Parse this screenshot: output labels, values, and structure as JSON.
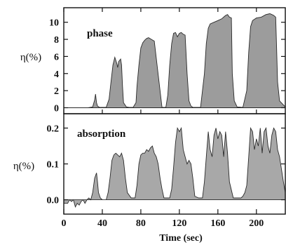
{
  "chart_data": {
    "type": "area",
    "xlabel": "Time (sec)",
    "xlim": [
      0,
      230
    ],
    "xticks": [
      0,
      40,
      80,
      120,
      160,
      200
    ],
    "panels": [
      {
        "label": "phase",
        "ylabel": "η(%)",
        "ylim": [
          -0.7,
          11.7
        ],
        "yticks": [
          0,
          2,
          4,
          6,
          8,
          10
        ],
        "series": [
          {
            "x": [
              0,
              25,
              30,
              32,
              33,
              34,
              35,
              37,
              44,
              47,
              49,
              51,
              53,
              55,
              56,
              57,
              59,
              60,
              61,
              62,
              65,
              68,
              72,
              75,
              76,
              78,
              80,
              82,
              84,
              86,
              88,
              91,
              94,
              102,
              106,
              108,
              110,
              112,
              114,
              116,
              118,
              120,
              122,
              124,
              126,
              128,
              130,
              132,
              134,
              136,
              142,
              146,
              148,
              150,
              152,
              156,
              160,
              164,
              166,
              168,
              170,
              172,
              174,
              175,
              177,
              180,
              186,
              190,
              192,
              194,
              196,
              200,
              205,
              210,
              214,
              216,
              218,
              220,
              221,
              222,
              224,
              230
            ],
            "y": [
              0,
              0,
              0.1,
              0.9,
              1.6,
              0.6,
              0.2,
              0.05,
              0.05,
              1.0,
              3.0,
              5.0,
              5.9,
              5.2,
              4.7,
              5.4,
              5.7,
              5.0,
              2.5,
              0.6,
              0.1,
              0.05,
              0.05,
              0.6,
              2.5,
              5.0,
              7.0,
              7.6,
              7.9,
              8.1,
              8.2,
              8.0,
              7.8,
              0.05,
              0.05,
              1.5,
              5.0,
              7.5,
              8.7,
              8.8,
              8.3,
              8.7,
              8.8,
              8.6,
              8.5,
              4.0,
              0.8,
              0.2,
              0.05,
              0.05,
              0.05,
              4.0,
              7.5,
              9.3,
              9.8,
              10.0,
              10.2,
              10.4,
              10.6,
              10.8,
              10.9,
              10.6,
              10.5,
              4.0,
              0.8,
              0.1,
              0.05,
              2.0,
              6.5,
              9.5,
              10.2,
              10.5,
              10.6,
              10.9,
              11.0,
              10.9,
              10.8,
              10.6,
              7.0,
              3.0,
              0.8,
              0.1
            ]
          }
        ]
      },
      {
        "label": "absorption",
        "ylabel": "η(%)",
        "ylim": [
          -0.04,
          0.24
        ],
        "yticks": [
          0.0,
          0.1,
          0.2
        ],
        "ytick_labels": [
          "0.0",
          "0.1",
          "0.2"
        ],
        "series": [
          {
            "x": [
              0,
              4,
              6,
              8,
              10,
              12,
              14,
              16,
              18,
              20,
              22,
              24,
              26,
              28,
              30,
              32,
              34,
              35,
              36,
              38,
              40,
              44,
              46,
              48,
              50,
              52,
              54,
              56,
              58,
              60,
              62,
              64,
              66,
              70,
              74,
              76,
              78,
              80,
              82,
              84,
              86,
              88,
              90,
              92,
              94,
              96,
              98,
              100,
              102,
              104,
              110,
              112,
              114,
              116,
              118,
              120,
              122,
              124,
              126,
              128,
              130,
              132,
              134,
              136,
              140,
              144,
              146,
              148,
              150,
              152,
              154,
              156,
              158,
              160,
              162,
              164,
              166,
              168,
              170,
              172,
              176,
              184,
              186,
              188,
              190,
              192,
              194,
              196,
              198,
              200,
              202,
              204,
              206,
              208,
              210,
              212,
              214,
              216,
              218,
              220,
              222,
              224,
              228,
              230
            ],
            "y": [
              -0.01,
              -0.01,
              0.0,
              -0.005,
              0.0,
              -0.02,
              -0.01,
              -0.015,
              -0.005,
              0.0,
              -0.01,
              0.0,
              0.005,
              0.0,
              0.02,
              0.06,
              0.075,
              0.05,
              0.02,
              0.005,
              0.0,
              0.0,
              0.02,
              0.06,
              0.11,
              0.125,
              0.13,
              0.125,
              0.12,
              0.13,
              0.11,
              0.06,
              0.02,
              0.005,
              0.005,
              0.04,
              0.1,
              0.125,
              0.13,
              0.13,
              0.14,
              0.135,
              0.145,
              0.15,
              0.13,
              0.12,
              0.1,
              0.06,
              0.03,
              0.005,
              0.005,
              0.03,
              0.09,
              0.16,
              0.2,
              0.19,
              0.2,
              0.14,
              0.12,
              0.1,
              0.11,
              0.1,
              0.06,
              0.01,
              0.005,
              0.005,
              0.05,
              0.12,
              0.19,
              0.14,
              0.12,
              0.18,
              0.2,
              0.17,
              0.19,
              0.18,
              0.12,
              0.19,
              0.13,
              0.05,
              0.005,
              0.005,
              0.01,
              0.02,
              0.04,
              0.12,
              0.2,
              0.19,
              0.14,
              0.17,
              0.15,
              0.2,
              0.13,
              0.19,
              0.2,
              0.15,
              0.13,
              0.18,
              0.2,
              0.19,
              0.14,
              0.12,
              0.05,
              0.02
            ]
          }
        ]
      }
    ]
  }
}
